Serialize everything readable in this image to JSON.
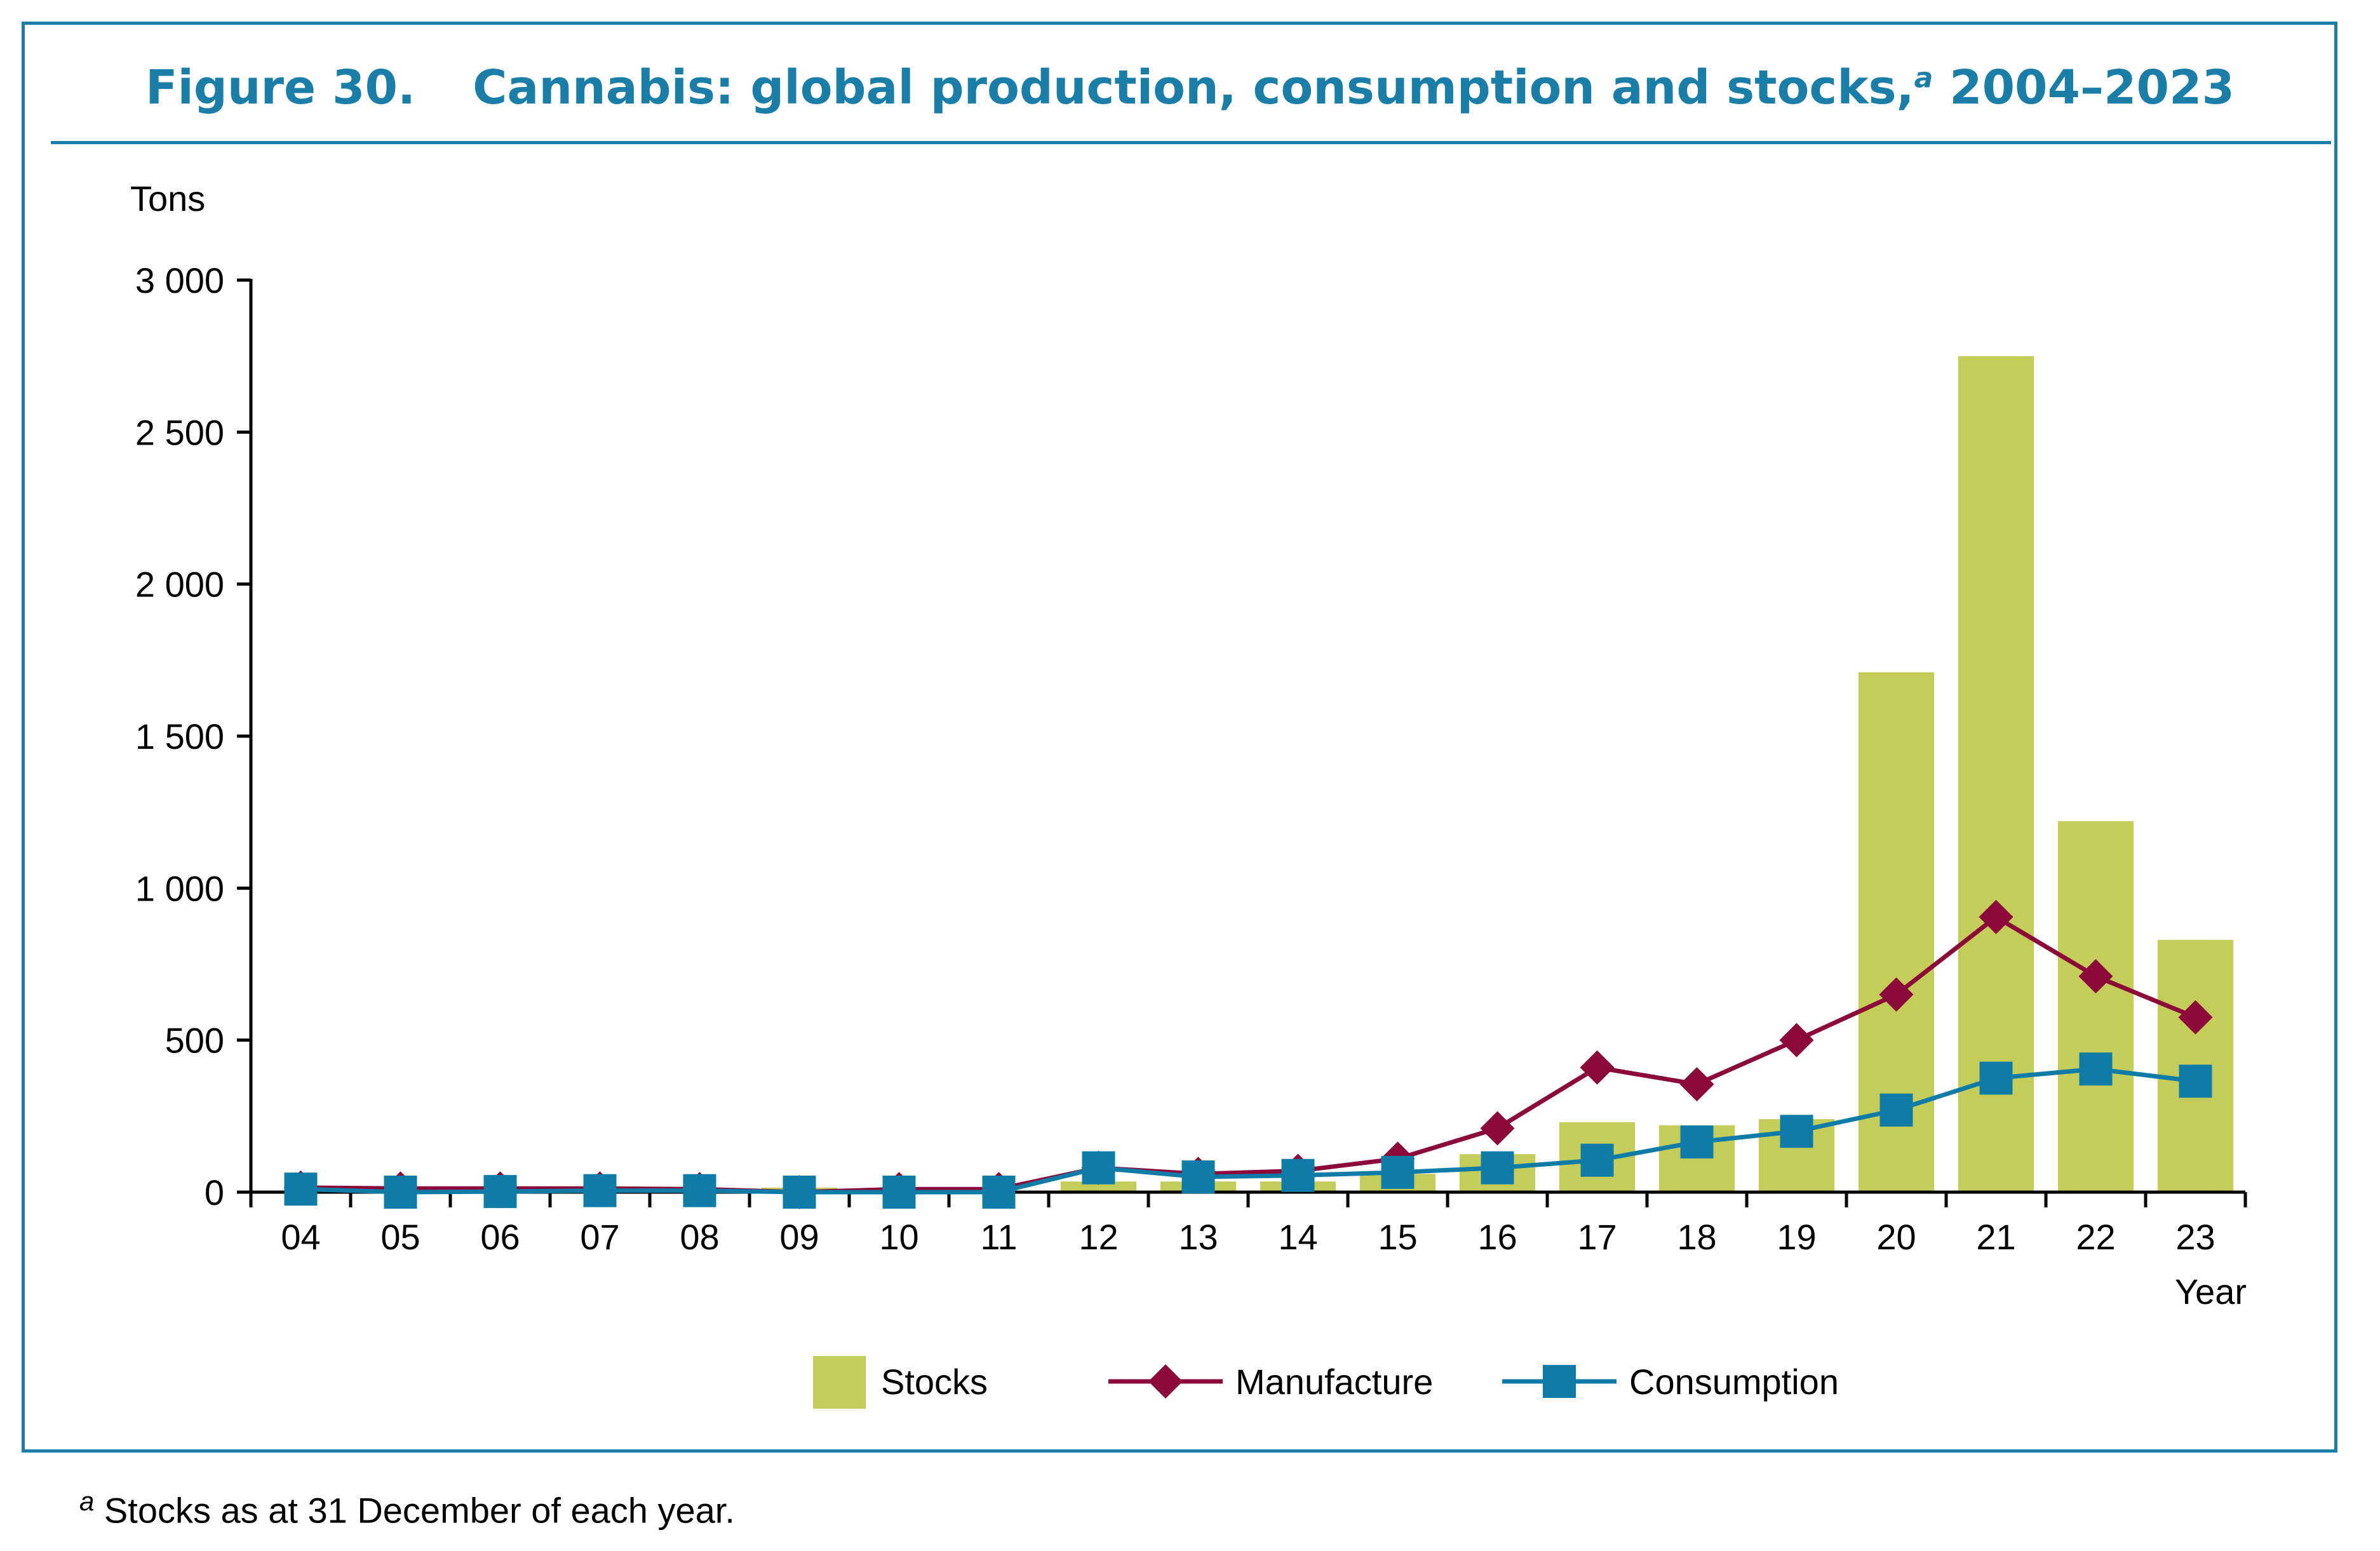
{
  "figure": {
    "number": "Figure 30.",
    "title": "Cannabis: global production, consumption and stocks,",
    "title_marker": "a",
    "title_range": "2004–2023"
  },
  "footnote": {
    "marker": "a",
    "text": "Stocks as at 31 December of each year."
  },
  "chart_data": {
    "type": "bar",
    "title": "Cannabis: global production, consumption and stocks, 2004–2023",
    "ylabel": "Tons",
    "xlabel": "Year",
    "ylim": [
      0,
      3000
    ],
    "yticks": [
      0,
      500,
      1000,
      1500,
      2000,
      2500,
      3000
    ],
    "ytick_labels": [
      "0",
      "500",
      "1 000",
      "1 500",
      "2 000",
      "2 500",
      "3 000"
    ],
    "categories": [
      "04",
      "05",
      "06",
      "07",
      "08",
      "09",
      "10",
      "11",
      "12",
      "13",
      "14",
      "15",
      "16",
      "17",
      "18",
      "19",
      "20",
      "21",
      "22",
      "23"
    ],
    "grid": false,
    "legend_position": "bottom-center",
    "series": [
      {
        "name": "Stocks",
        "kind": "bar",
        "color": "#c4cc5a",
        "values": [
          2,
          2,
          3,
          3,
          3,
          15,
          5,
          5,
          35,
          35,
          35,
          60,
          125,
          230,
          220,
          240,
          1710,
          2750,
          1220,
          830
        ]
      },
      {
        "name": "Manufacture",
        "kind": "line",
        "marker": "diamond",
        "color": "#8b0a3a",
        "values": [
          15,
          12,
          12,
          12,
          10,
          0,
          10,
          10,
          80,
          60,
          70,
          110,
          210,
          410,
          355,
          500,
          650,
          905,
          710,
          575
        ]
      },
      {
        "name": "Consumption",
        "kind": "line",
        "marker": "square",
        "color": "#0f7ca8",
        "values": [
          10,
          0,
          2,
          5,
          5,
          0,
          0,
          0,
          80,
          50,
          55,
          65,
          80,
          105,
          165,
          200,
          270,
          375,
          405,
          365
        ]
      }
    ]
  }
}
